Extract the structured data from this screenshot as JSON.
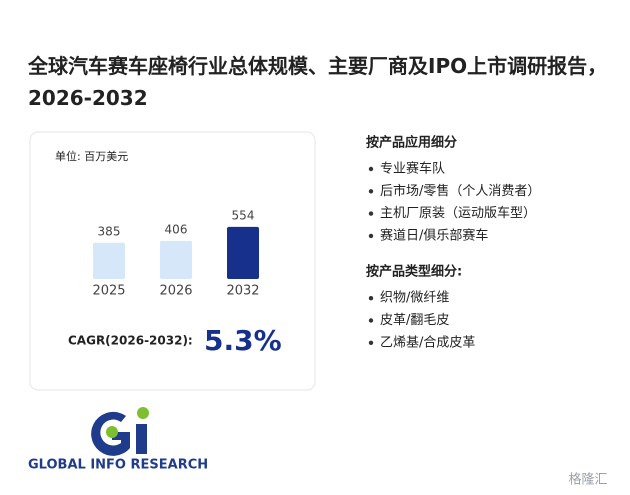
{
  "title": "全球汽车赛车座椅行业总体规模、主要厂商及IPO上市调研报告，2026-2032",
  "chart_data": {
    "type": "bar",
    "unit_label": "单位: 百万美元",
    "categories": [
      "2025",
      "2026",
      "2032"
    ],
    "values": [
      385,
      406,
      554
    ],
    "colors": [
      "#d5e7f8",
      "#d5e7f8",
      "#17308c"
    ]
  },
  "cagr": {
    "label": "CAGR(2026-2032):",
    "value": "5.3%"
  },
  "segments": [
    {
      "heading": "按产品应用细分",
      "items": [
        "专业赛车队",
        "后市场/零售（个人消费者）",
        "主机厂原装（运动版车型）",
        "赛道日/俱乐部赛车"
      ]
    },
    {
      "heading": "按产品类型细分:",
      "items": [
        "织物/微纤维",
        "皮革/翻毛皮",
        "乙烯基/合成皮革"
      ]
    }
  ],
  "logo": "GLOBAL INFO RESEARCH",
  "watermark": "格隆汇"
}
